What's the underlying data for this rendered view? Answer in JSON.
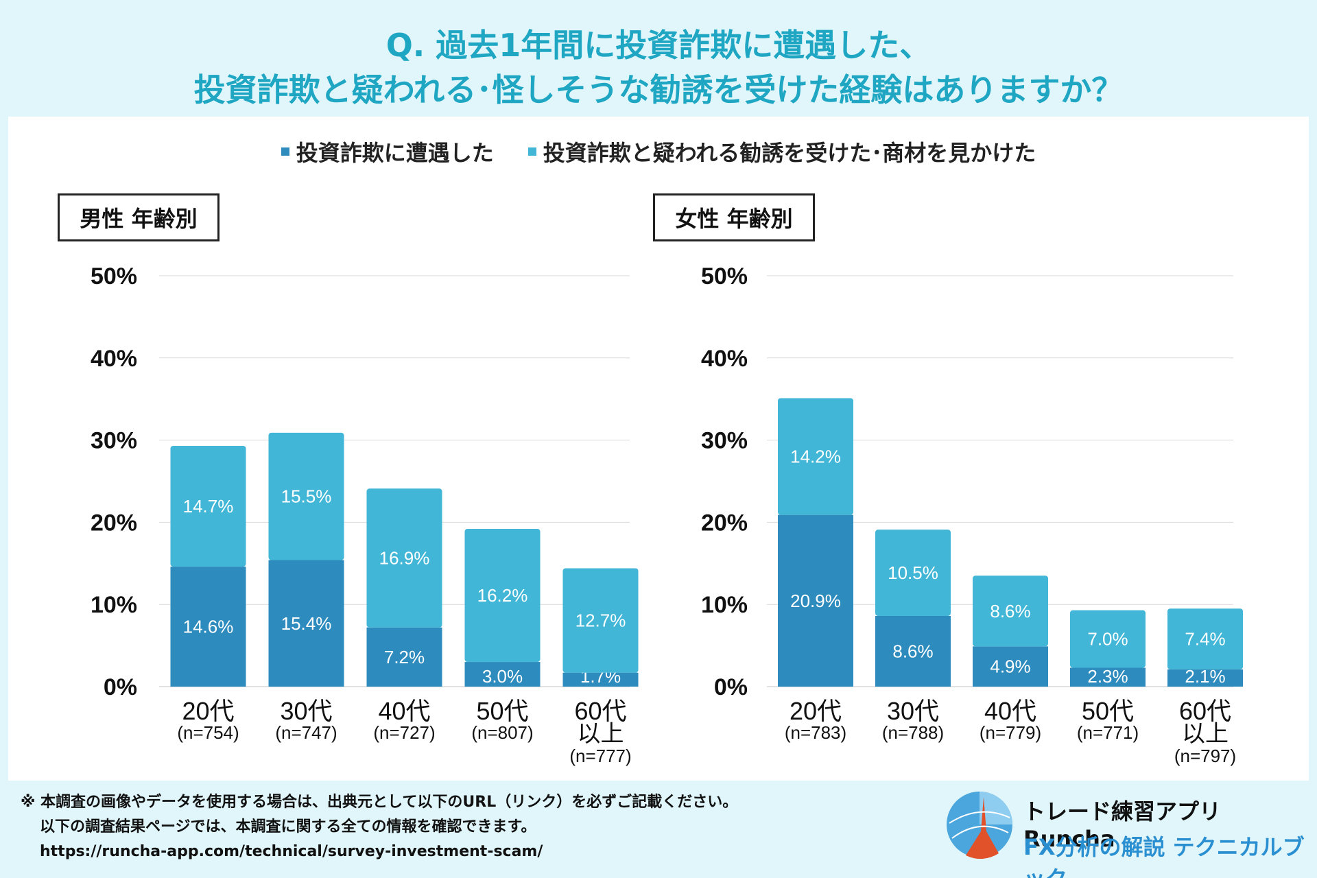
{
  "title": {
    "line1": "Q. 過去1年間に投資詐欺に遭遇した、",
    "line2": "投資詐欺と疑われる･怪しそうな勧誘を受けた経験はありますか？"
  },
  "legend": [
    {
      "label": "投資詐欺に遭遇した",
      "color": "#2e8bbd"
    },
    {
      "label": "投資詐欺と疑われる勧誘を受けた･商材を見かけた",
      "color": "#41b6d6"
    }
  ],
  "chart_data": [
    {
      "type": "bar",
      "stacked": true,
      "title": "男性 年齢別",
      "ylim": [
        0,
        50
      ],
      "yticks": [
        "0%",
        "10%",
        "20%",
        "30%",
        "40%",
        "50%"
      ],
      "categories": [
        {
          "label": "20代",
          "sublabel": "",
          "n": "(n=754)"
        },
        {
          "label": "30代",
          "sublabel": "",
          "n": "(n=747)"
        },
        {
          "label": "40代",
          "sublabel": "",
          "n": "(n=727)"
        },
        {
          "label": "50代",
          "sublabel": "",
          "n": "(n=807)"
        },
        {
          "label": "60代",
          "sublabel": "以上",
          "n": "(n=777)"
        }
      ],
      "series": [
        {
          "name": "投資詐欺に遭遇した",
          "values": [
            14.6,
            15.4,
            7.2,
            3.0,
            1.7
          ],
          "labels": [
            "14.6%",
            "15.4%",
            "7.2%",
            "3.0%",
            "1.7%"
          ]
        },
        {
          "name": "投資詐欺と疑われる勧誘を受けた･商材を見かけた",
          "values": [
            14.7,
            15.5,
            16.9,
            16.2,
            12.7
          ],
          "labels": [
            "14.7%",
            "15.5%",
            "16.9%",
            "16.2%",
            "12.7%"
          ]
        }
      ]
    },
    {
      "type": "bar",
      "stacked": true,
      "title": "女性 年齢別",
      "ylim": [
        0,
        50
      ],
      "yticks": [
        "0%",
        "10%",
        "20%",
        "30%",
        "40%",
        "50%"
      ],
      "categories": [
        {
          "label": "20代",
          "sublabel": "",
          "n": "(n=783)"
        },
        {
          "label": "30代",
          "sublabel": "",
          "n": "(n=788)"
        },
        {
          "label": "40代",
          "sublabel": "",
          "n": "(n=779)"
        },
        {
          "label": "50代",
          "sublabel": "",
          "n": "(n=771)"
        },
        {
          "label": "60代",
          "sublabel": "以上",
          "n": "(n=797)"
        }
      ],
      "series": [
        {
          "name": "投資詐欺に遭遇した",
          "values": [
            20.9,
            8.6,
            4.9,
            2.3,
            2.1
          ],
          "labels": [
            "20.9%",
            "8.6%",
            "4.9%",
            "2.3%",
            "2.1%"
          ]
        },
        {
          "name": "投資詐欺と疑われる勧誘を受けた･商材を見かけた",
          "values": [
            14.2,
            10.5,
            8.6,
            7.0,
            7.4
          ],
          "labels": [
            "14.2%",
            "10.5%",
            "8.6%",
            "7.0%",
            "7.4%"
          ]
        }
      ]
    }
  ],
  "footer": {
    "line1": "※ 本調査の画像やデータを使用する場合は、出典元として以下のURL（リンク）を必ずご記載ください。",
    "line2": "以下の調査結果ページでは、本調査に関する全ての情報を確認できます。",
    "line3": "https://runcha-app.com/technical/survey-investment-scam/"
  },
  "brand": {
    "name": "トレード練習アプリ Runcha",
    "sub": "FX分析の解説 テクニカルブック"
  }
}
